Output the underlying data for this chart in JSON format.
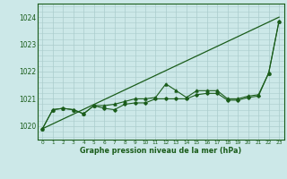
{
  "title": "Graphe pression niveau de la mer (hPa)",
  "background_color": "#cce8e8",
  "grid_color": "#aacccc",
  "line_color": "#1a5c1a",
  "x_labels": [
    "0",
    "1",
    "2",
    "3",
    "4",
    "5",
    "6",
    "7",
    "8",
    "9",
    "10",
    "11",
    "12",
    "13",
    "14",
    "15",
    "16",
    "17",
    "18",
    "19",
    "20",
    "21",
    "22",
    "23"
  ],
  "ylim": [
    1019.5,
    1024.5
  ],
  "yticks": [
    1020,
    1021,
    1022,
    1023,
    1024
  ],
  "trend_line": [
    1019.9,
    1024.0
  ],
  "series_diamond": [
    1019.9,
    1020.6,
    1020.65,
    1020.6,
    1020.45,
    1020.75,
    1020.65,
    1020.6,
    1020.8,
    1020.85,
    1020.85,
    1021.0,
    1021.0,
    1021.0,
    1021.0,
    1021.15,
    1021.2,
    1021.2,
    1020.95,
    1020.95,
    1021.05,
    1021.1,
    1021.95,
    1023.85
  ],
  "series_triangle": [
    1019.9,
    1020.6,
    1020.65,
    1020.6,
    1020.45,
    1020.75,
    1020.75,
    1020.8,
    1020.9,
    1021.0,
    1021.0,
    1021.05,
    1021.55,
    1021.3,
    1021.05,
    1021.3,
    1021.3,
    1021.3,
    1021.0,
    1021.0,
    1021.1,
    1021.15,
    1021.95,
    1023.85
  ]
}
